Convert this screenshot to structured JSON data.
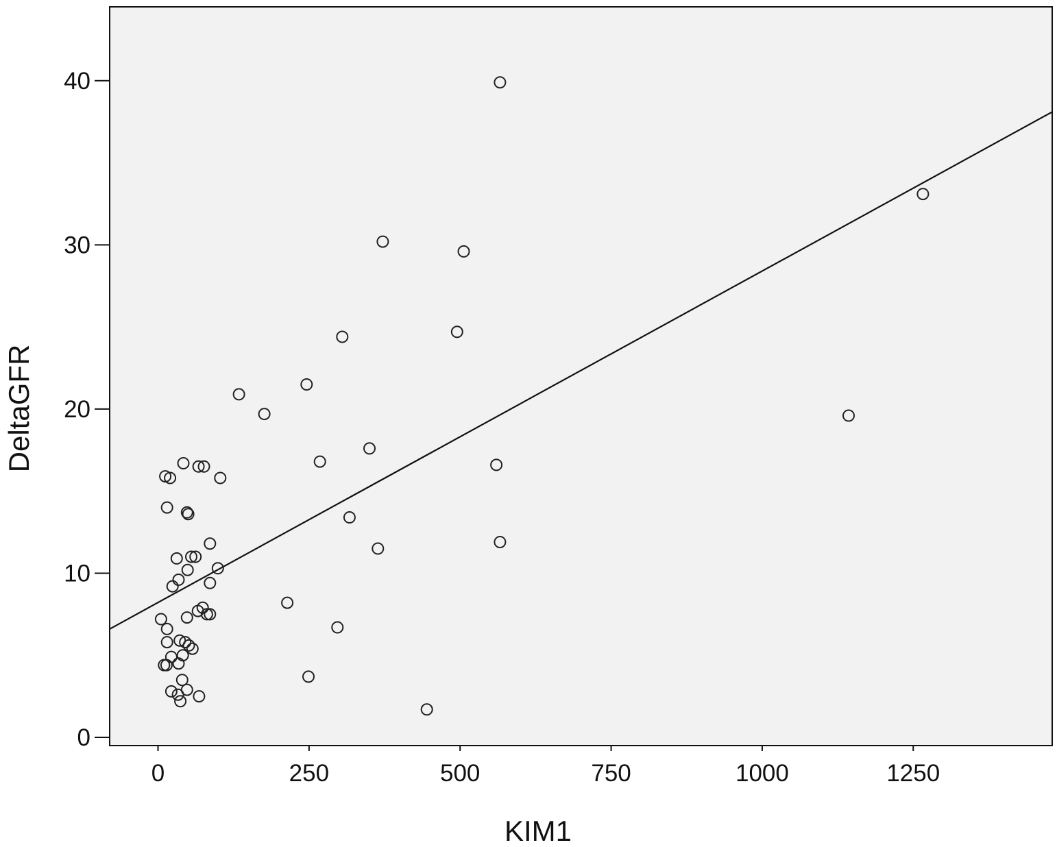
{
  "chart_data": {
    "type": "scatter",
    "title": "",
    "xlabel": "KIM1",
    "ylabel": "DeltaGFR",
    "xlim": [
      -80,
      1480
    ],
    "ylim": [
      -0.5,
      44.5
    ],
    "x_ticks": [
      0,
      250,
      500,
      750,
      1000,
      1250
    ],
    "y_ticks": [
      0,
      10,
      20,
      30,
      40
    ],
    "grid": false,
    "legend": "none",
    "plot_background": "#f2f2f2",
    "marker_color": "#222222",
    "line_color": "#111111",
    "series": [
      {
        "values": [
          [
            566,
            39.9
          ],
          [
            1266,
            33.1
          ],
          [
            372,
            30.2
          ],
          [
            506,
            29.6
          ],
          [
            305,
            24.4
          ],
          [
            495,
            24.7
          ],
          [
            134,
            20.9
          ],
          [
            246,
            21.5
          ],
          [
            176,
            19.7
          ],
          [
            1143,
            19.6
          ],
          [
            350,
            17.6
          ],
          [
            268,
            16.8
          ],
          [
            560,
            16.6
          ],
          [
            42,
            16.7
          ],
          [
            67,
            16.5
          ],
          [
            76,
            16.5
          ],
          [
            12,
            15.9
          ],
          [
            20,
            15.8
          ],
          [
            103,
            15.8
          ],
          [
            15,
            14.0
          ],
          [
            48,
            13.7
          ],
          [
            50,
            13.6
          ],
          [
            317,
            13.4
          ],
          [
            86,
            11.8
          ],
          [
            364,
            11.5
          ],
          [
            566,
            11.9
          ],
          [
            31,
            10.9
          ],
          [
            55,
            11.0
          ],
          [
            62,
            11.0
          ],
          [
            99,
            10.3
          ],
          [
            49,
            10.2
          ],
          [
            34,
            9.6
          ],
          [
            24,
            9.2
          ],
          [
            86,
            9.4
          ],
          [
            214,
            8.2
          ],
          [
            66,
            7.7
          ],
          [
            74,
            7.9
          ],
          [
            81,
            7.5
          ],
          [
            86,
            7.5
          ],
          [
            48,
            7.3
          ],
          [
            5,
            7.2
          ],
          [
            297,
            6.7
          ],
          [
            15,
            6.6
          ],
          [
            36,
            5.9
          ],
          [
            45,
            5.8
          ],
          [
            15,
            5.8
          ],
          [
            51,
            5.6
          ],
          [
            57,
            5.4
          ],
          [
            41,
            5.0
          ],
          [
            22,
            4.9
          ],
          [
            34,
            4.5
          ],
          [
            10,
            4.4
          ],
          [
            14,
            4.4
          ],
          [
            249,
            3.7
          ],
          [
            40,
            3.5
          ],
          [
            48,
            2.9
          ],
          [
            22,
            2.8
          ],
          [
            33,
            2.6
          ],
          [
            68,
            2.5
          ],
          [
            37,
            2.2
          ],
          [
            445,
            1.7
          ]
        ]
      }
    ],
    "fit_line": {
      "x": [
        -80,
        1480
      ],
      "y": [
        6.6,
        38.1
      ]
    }
  }
}
